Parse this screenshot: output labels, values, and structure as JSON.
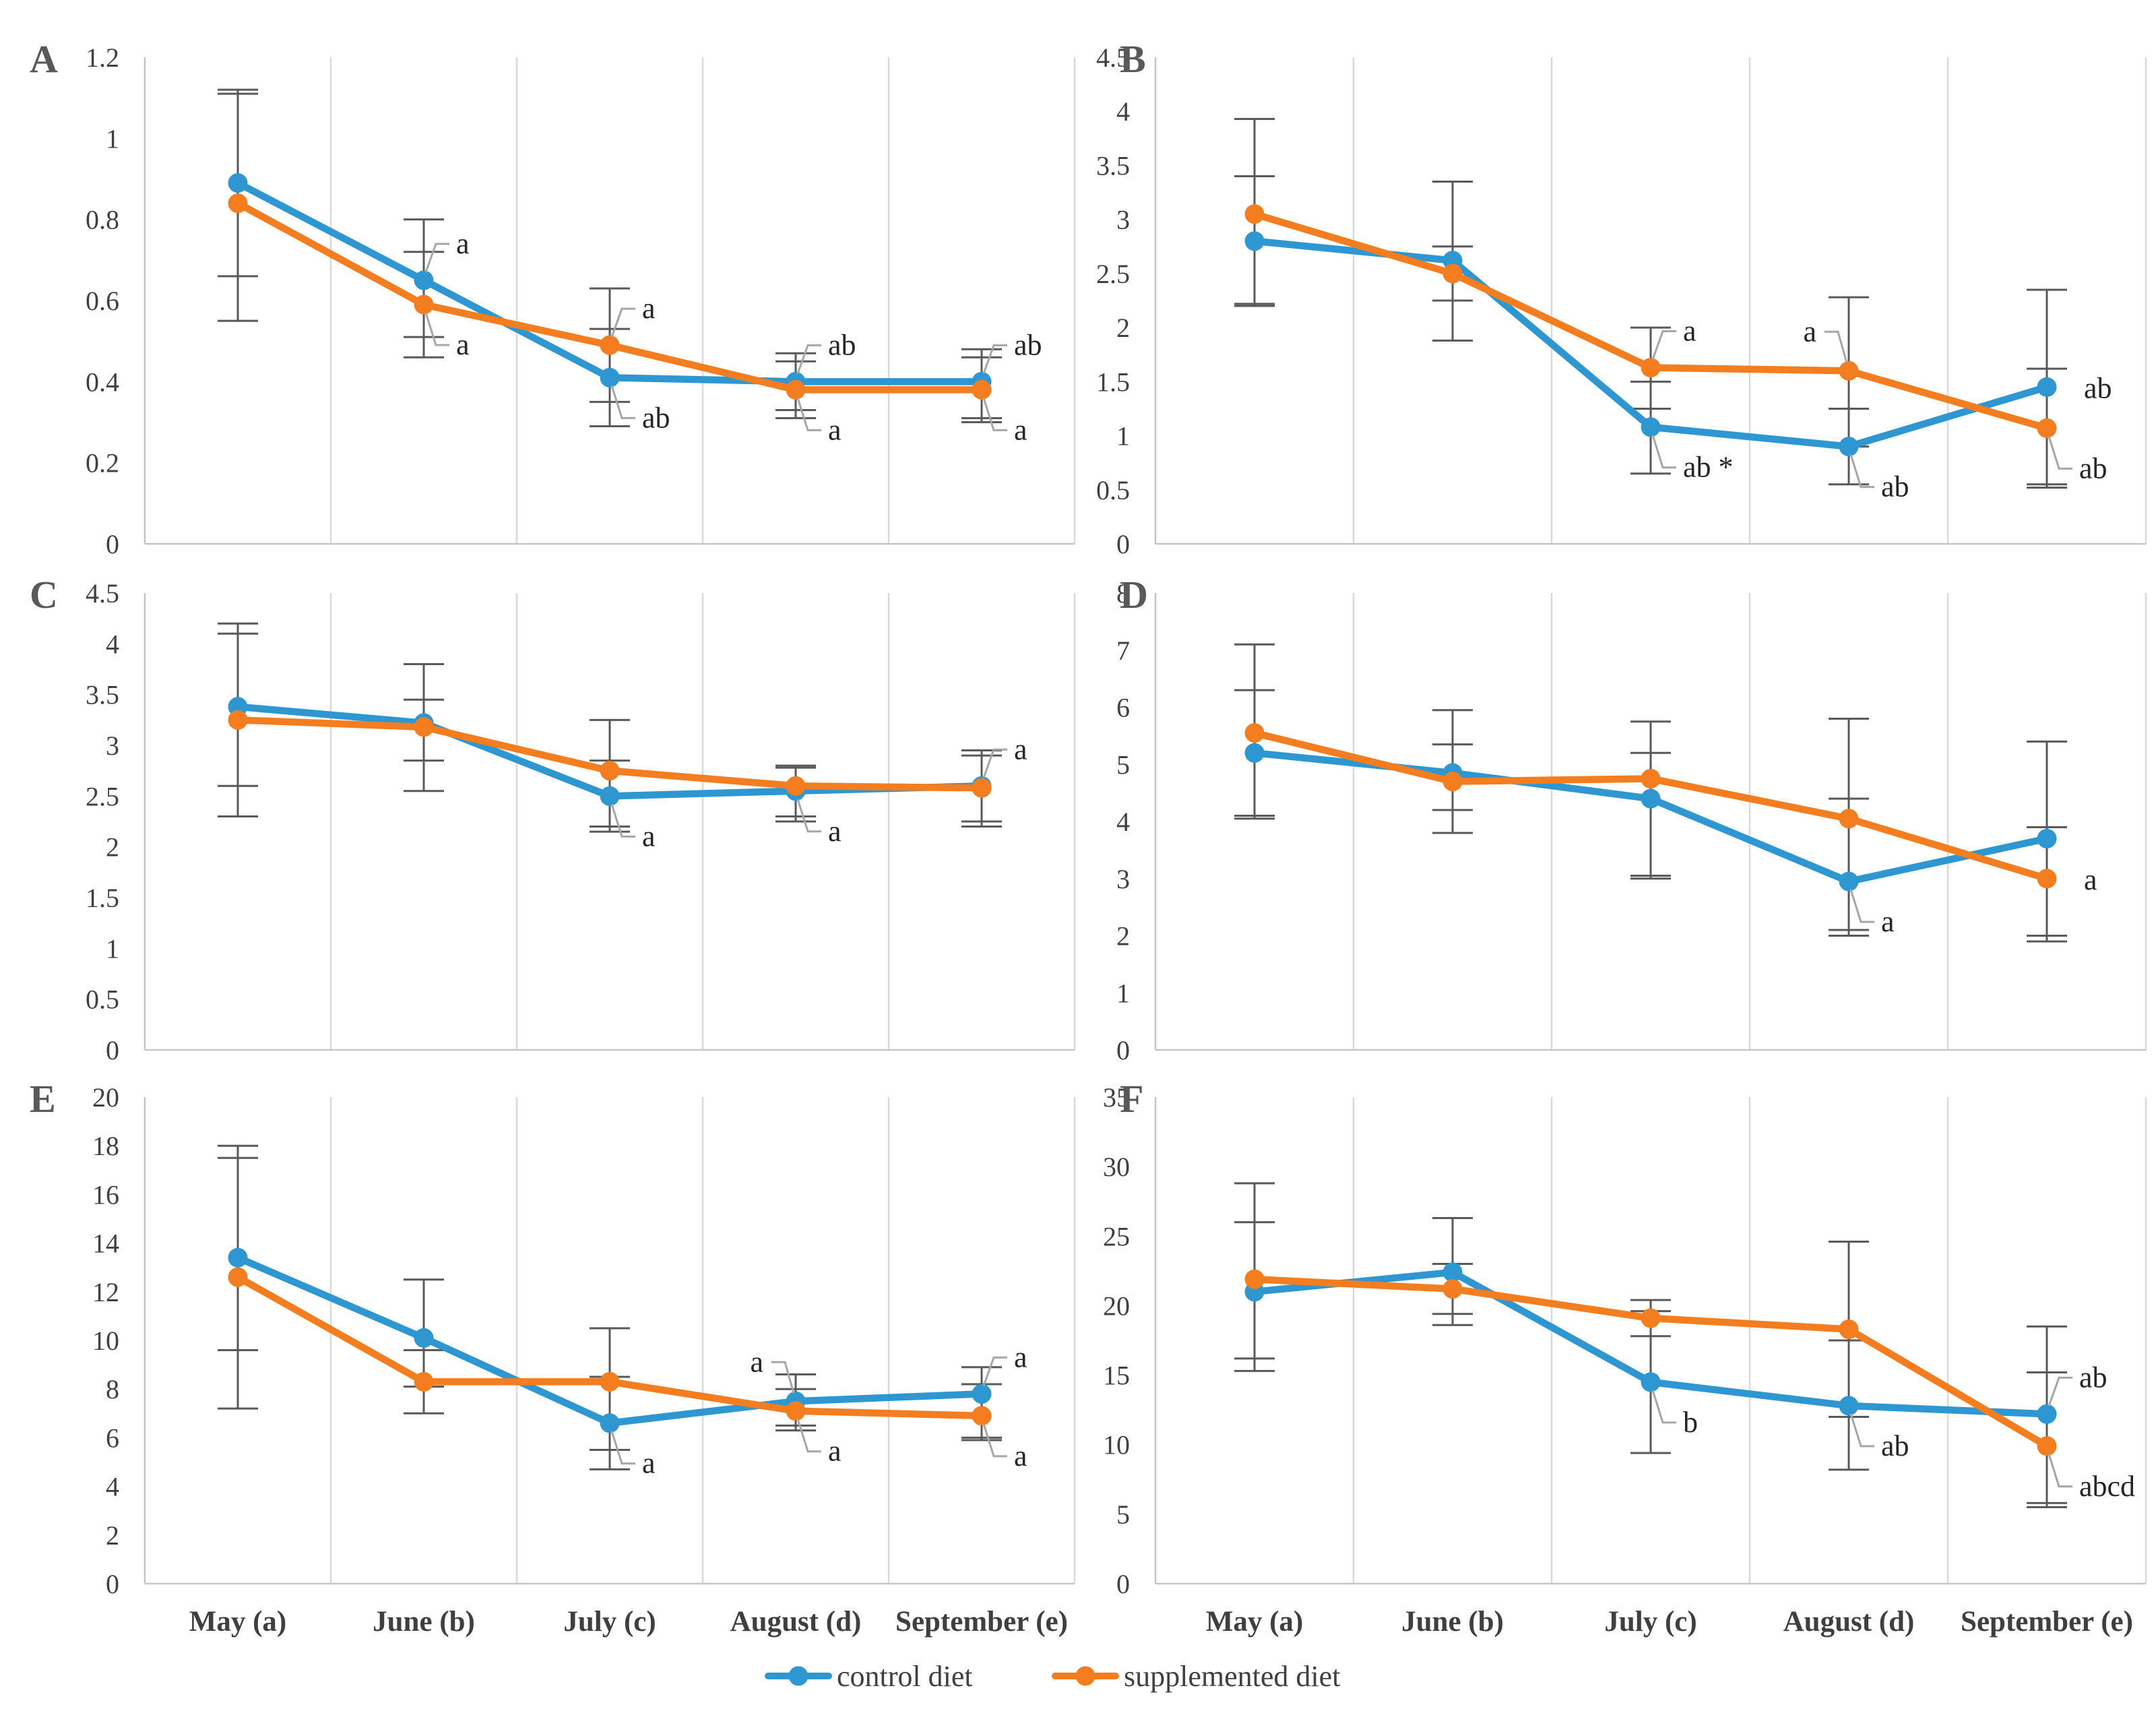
{
  "figure": {
    "background": "#ffffff",
    "categories": [
      "May (a)",
      "June (b)",
      "July (c)",
      "August (d)",
      "September (e)"
    ],
    "legend": {
      "position": "bottom-center",
      "items": [
        {
          "label": "control diet",
          "color": "#2E96D0"
        },
        {
          "label": "supplemented diet",
          "color": "#F47D20"
        }
      ]
    },
    "colors": {
      "control": "#2E96D0",
      "supplemented": "#F47D20",
      "error_bar": "#595959",
      "leader_line": "#A6A6A6",
      "gridline": "#D9D9D9",
      "axis_line": "#C6C6C6",
      "tick_text": "#404040",
      "panel_letter": "#595959",
      "x_label_text": "#3F3F3F",
      "annotation_text": "#262626"
    }
  },
  "chart_data": [
    {
      "type": "line",
      "id": "A",
      "ylim": [
        0,
        1.2
      ],
      "ystep": 0.2,
      "grid": "vertical-only",
      "categories": [
        "May (a)",
        "June (b)",
        "July (c)",
        "August (d)",
        "September (e)"
      ],
      "series": [
        {
          "name": "control diet",
          "color": "#2E96D0",
          "values": [
            0.89,
            0.65,
            0.41,
            0.4,
            0.4
          ],
          "err_lo": [
            0.66,
            0.51,
            0.29,
            0.33,
            0.31
          ],
          "err_hi": [
            1.12,
            0.8,
            0.53,
            0.47,
            0.48
          ]
        },
        {
          "name": "supplemented diet",
          "color": "#F47D20",
          "values": [
            0.84,
            0.59,
            0.49,
            0.38,
            0.38
          ],
          "err_lo": [
            0.55,
            0.46,
            0.35,
            0.31,
            0.3
          ],
          "err_hi": [
            1.11,
            0.72,
            0.63,
            0.45,
            0.46
          ]
        }
      ],
      "annotations": [
        {
          "series": 0,
          "point": 1,
          "text": "a",
          "side": "tr"
        },
        {
          "series": 1,
          "point": 1,
          "text": "a",
          "side": "br"
        },
        {
          "series": 1,
          "point": 2,
          "text": "a",
          "side": "tr"
        },
        {
          "series": 0,
          "point": 2,
          "text": "ab",
          "side": "br"
        },
        {
          "series": 0,
          "point": 3,
          "text": "ab",
          "side": "tr"
        },
        {
          "series": 1,
          "point": 3,
          "text": "a",
          "side": "br"
        },
        {
          "series": 0,
          "point": 4,
          "text": "ab",
          "side": "tr"
        },
        {
          "series": 1,
          "point": 4,
          "text": "a",
          "side": "br"
        }
      ]
    },
    {
      "type": "line",
      "id": "B",
      "ylim": [
        0,
        4.5
      ],
      "ystep": 0.5,
      "grid": "vertical-only",
      "categories": [
        "May (a)",
        "June (b)",
        "July (c)",
        "August (d)",
        "September (e)"
      ],
      "series": [
        {
          "name": "control diet",
          "color": "#2E96D0",
          "values": [
            2.8,
            2.62,
            1.08,
            0.9,
            1.45
          ],
          "err_lo": [
            2.2,
            1.88,
            0.65,
            0.55,
            0.55
          ],
          "err_hi": [
            3.4,
            3.35,
            1.5,
            1.25,
            2.35
          ]
        },
        {
          "name": "supplemented diet",
          "color": "#F47D20",
          "values": [
            3.05,
            2.5,
            1.63,
            1.6,
            1.07
          ],
          "err_lo": [
            2.22,
            2.25,
            1.25,
            0.9,
            0.52
          ],
          "err_hi": [
            3.93,
            2.75,
            2.0,
            2.28,
            1.62
          ]
        }
      ],
      "annotations": [
        {
          "series": 1,
          "point": 2,
          "text": "a",
          "side": "tr"
        },
        {
          "series": 0,
          "point": 2,
          "text": "ab *",
          "side": "br"
        },
        {
          "series": 1,
          "point": 3,
          "text": "a",
          "side": "tl"
        },
        {
          "series": 0,
          "point": 3,
          "text": "ab",
          "side": "br"
        },
        {
          "series": 0,
          "point": 4,
          "text": "ab",
          "side": "r"
        },
        {
          "series": 1,
          "point": 4,
          "text": "ab",
          "side": "br"
        }
      ]
    },
    {
      "type": "line",
      "id": "C",
      "ylim": [
        0,
        4.5
      ],
      "ystep": 0.5,
      "grid": "vertical-only",
      "categories": [
        "May (a)",
        "June (b)",
        "July (c)",
        "August (d)",
        "September (e)"
      ],
      "series": [
        {
          "name": "control diet",
          "color": "#2E96D0",
          "values": [
            3.38,
            3.22,
            2.5,
            2.55,
            2.6
          ],
          "err_lo": [
            2.6,
            2.85,
            2.15,
            2.25,
            2.2
          ],
          "err_hi": [
            4.2,
            3.8,
            2.85,
            2.8,
            2.95
          ]
        },
        {
          "name": "supplemented diet",
          "color": "#F47D20",
          "values": [
            3.25,
            3.18,
            2.75,
            2.6,
            2.58
          ],
          "err_lo": [
            2.3,
            2.55,
            2.2,
            2.3,
            2.25
          ],
          "err_hi": [
            4.1,
            3.45,
            3.25,
            2.78,
            2.9
          ]
        }
      ],
      "annotations": [
        {
          "series": 0,
          "point": 2,
          "text": "a",
          "side": "br"
        },
        {
          "series": 0,
          "point": 3,
          "text": "a",
          "side": "br"
        },
        {
          "series": 0,
          "point": 4,
          "text": "a",
          "side": "tr"
        }
      ]
    },
    {
      "type": "line",
      "id": "D",
      "ylim": [
        0,
        8
      ],
      "ystep": 1,
      "grid": "vertical-only",
      "categories": [
        "May (a)",
        "June (b)",
        "July (c)",
        "August (d)",
        "September (e)"
      ],
      "series": [
        {
          "name": "control diet",
          "color": "#2E96D0",
          "values": [
            5.2,
            4.85,
            4.4,
            2.95,
            3.7
          ],
          "err_lo": [
            4.05,
            3.8,
            3.0,
            2.0,
            1.9
          ],
          "err_hi": [
            6.3,
            5.95,
            5.2,
            4.4,
            5.4
          ]
        },
        {
          "name": "supplemented diet",
          "color": "#F47D20",
          "values": [
            5.55,
            4.7,
            4.75,
            4.05,
            3.0
          ],
          "err_lo": [
            4.1,
            4.2,
            3.05,
            2.1,
            2.0
          ],
          "err_hi": [
            7.1,
            5.35,
            5.75,
            5.8,
            3.9
          ]
        }
      ],
      "annotations": [
        {
          "series": 0,
          "point": 3,
          "text": "a",
          "side": "br"
        },
        {
          "series": 1,
          "point": 4,
          "text": "a",
          "side": "r"
        }
      ]
    },
    {
      "type": "line",
      "id": "E",
      "ylim": [
        0,
        20
      ],
      "ystep": 2,
      "grid": "vertical-only",
      "categories": [
        "May (a)",
        "June (b)",
        "July (c)",
        "August (d)",
        "September (e)"
      ],
      "series": [
        {
          "name": "control diet",
          "color": "#2E96D0",
          "values": [
            13.4,
            10.1,
            6.6,
            7.5,
            7.8
          ],
          "err_lo": [
            9.6,
            8.1,
            4.7,
            6.3,
            5.9
          ],
          "err_hi": [
            17.5,
            12.5,
            8.5,
            8.6,
            8.9
          ]
        },
        {
          "name": "supplemented diet",
          "color": "#F47D20",
          "values": [
            12.6,
            8.3,
            8.3,
            7.1,
            6.9
          ],
          "err_lo": [
            7.2,
            7.0,
            5.5,
            6.5,
            6.0
          ],
          "err_hi": [
            18.0,
            9.6,
            10.5,
            8.0,
            8.2
          ]
        }
      ],
      "annotations": [
        {
          "series": 0,
          "point": 2,
          "text": "a",
          "side": "br"
        },
        {
          "series": 0,
          "point": 3,
          "text": "a",
          "side": "tl"
        },
        {
          "series": 1,
          "point": 3,
          "text": "a",
          "side": "br"
        },
        {
          "series": 0,
          "point": 4,
          "text": "a",
          "side": "tr"
        },
        {
          "series": 1,
          "point": 4,
          "text": "a",
          "side": "br"
        }
      ]
    },
    {
      "type": "line",
      "id": "F",
      "ylim": [
        0,
        35
      ],
      "ystep": 5,
      "grid": "vertical-only",
      "categories": [
        "May (a)",
        "June (b)",
        "July (c)",
        "August (d)",
        "September (e)"
      ],
      "series": [
        {
          "name": "control diet",
          "color": "#2E96D0",
          "values": [
            21.0,
            22.4,
            14.5,
            12.8,
            12.2
          ],
          "err_lo": [
            15.3,
            18.6,
            9.4,
            8.2,
            5.8
          ],
          "err_hi": [
            26.0,
            26.3,
            19.6,
            17.5,
            18.5
          ]
        },
        {
          "name": "supplemented diet",
          "color": "#F47D20",
          "values": [
            21.9,
            21.2,
            19.1,
            18.3,
            9.9
          ],
          "err_lo": [
            16.2,
            19.4,
            17.8,
            12.0,
            5.5
          ],
          "err_hi": [
            28.8,
            23.0,
            20.4,
            24.6,
            15.2
          ]
        }
      ],
      "annotations": [
        {
          "series": 0,
          "point": 2,
          "text": "b",
          "side": "br"
        },
        {
          "series": 0,
          "point": 3,
          "text": "ab",
          "side": "br"
        },
        {
          "series": 0,
          "point": 4,
          "text": "ab",
          "side": "tr"
        },
        {
          "series": 1,
          "point": 4,
          "text": "abcd",
          "side": "br"
        }
      ]
    }
  ]
}
